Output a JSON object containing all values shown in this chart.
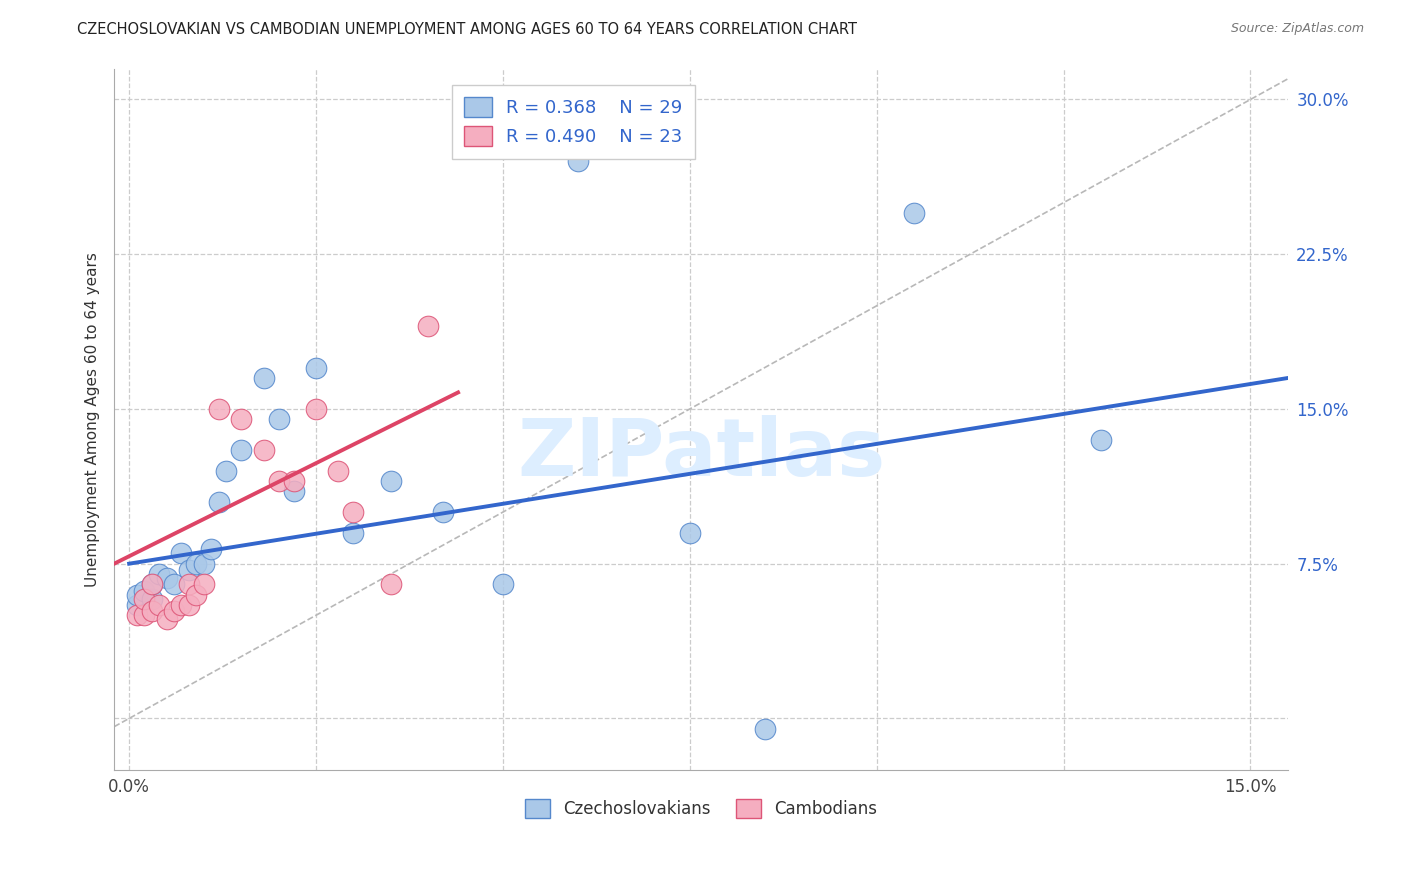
{
  "title": "CZECHOSLOVAKIAN VS CAMBODIAN UNEMPLOYMENT AMONG AGES 60 TO 64 YEARS CORRELATION CHART",
  "source": "Source: ZipAtlas.com",
  "ylabel": "Unemployment Among Ages 60 to 64 years",
  "xlim": [
    -0.002,
    0.155
  ],
  "ylim": [
    -0.025,
    0.315
  ],
  "xticks": [
    0.0,
    0.025,
    0.05,
    0.075,
    0.1,
    0.125,
    0.15
  ],
  "xticklabels": [
    "0.0%",
    "",
    "",
    "",
    "",
    "",
    "15.0%"
  ],
  "yticks": [
    0.0,
    0.075,
    0.15,
    0.225,
    0.3
  ],
  "yticklabels": [
    "",
    "7.5%",
    "15.0%",
    "22.5%",
    "30.0%"
  ],
  "czech_color": "#aac8e8",
  "cambodian_color": "#f5aec0",
  "czech_edge": "#5588cc",
  "cambodian_edge": "#dd5577",
  "blue_line_color": "#3366cc",
  "pink_line_color": "#dd4466",
  "diag_line_color": "#b8b8b8",
  "watermark_color": "#ddeeff",
  "legend_R_czech": "R = 0.368",
  "legend_N_czech": "N = 29",
  "legend_R_camb": "R = 0.490",
  "legend_N_camb": "N = 23",
  "czech_points_x": [
    0.001,
    0.001,
    0.002,
    0.003,
    0.003,
    0.004,
    0.005,
    0.006,
    0.007,
    0.008,
    0.009,
    0.01,
    0.011,
    0.012,
    0.013,
    0.015,
    0.018,
    0.02,
    0.022,
    0.025,
    0.03,
    0.035,
    0.042,
    0.05,
    0.06,
    0.075,
    0.085,
    0.105,
    0.13
  ],
  "czech_points_y": [
    0.055,
    0.06,
    0.062,
    0.058,
    0.065,
    0.07,
    0.068,
    0.065,
    0.08,
    0.072,
    0.075,
    0.075,
    0.082,
    0.105,
    0.12,
    0.13,
    0.165,
    0.145,
    0.11,
    0.17,
    0.09,
    0.115,
    0.1,
    0.065,
    0.27,
    0.09,
    -0.005,
    0.245,
    0.135
  ],
  "camb_points_x": [
    0.001,
    0.002,
    0.002,
    0.003,
    0.003,
    0.004,
    0.005,
    0.006,
    0.007,
    0.008,
    0.008,
    0.009,
    0.01,
    0.012,
    0.015,
    0.018,
    0.02,
    0.022,
    0.025,
    0.028,
    0.03,
    0.035,
    0.04
  ],
  "camb_points_y": [
    0.05,
    0.05,
    0.058,
    0.052,
    0.065,
    0.055,
    0.048,
    0.052,
    0.055,
    0.055,
    0.065,
    0.06,
    0.065,
    0.15,
    0.145,
    0.13,
    0.115,
    0.115,
    0.15,
    0.12,
    0.1,
    0.065,
    0.19
  ],
  "czech_line_x": [
    0.0,
    0.155
  ],
  "czech_line_y": [
    0.075,
    0.165
  ],
  "camb_line_x": [
    -0.002,
    0.044
  ],
  "camb_line_y": [
    0.075,
    0.158
  ]
}
